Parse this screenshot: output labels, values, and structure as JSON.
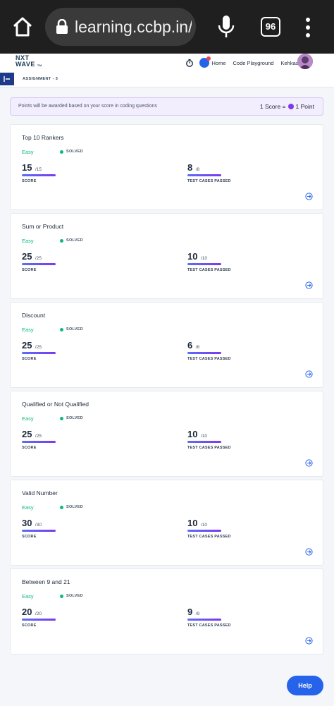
{
  "browser": {
    "url": "learning.ccbp.in/t",
    "tab_count": "96"
  },
  "header": {
    "logo_line1": "NXT",
    "logo_line2": "WAVE",
    "logo_tm": "TM",
    "nav": [
      "Home",
      "Code Playground",
      "Kehkashan"
    ]
  },
  "breadcrumb": "ASSIGNMENT - 3",
  "banner": {
    "message": "Points will be awarded based on your score in coding questions",
    "rate_left": "1 Score =",
    "rate_right": "1 Point"
  },
  "labels": {
    "score": "SCORE",
    "tests": "TEST CASES PASSED"
  },
  "questions": [
    {
      "title": "Top 10 Rankers",
      "difficulty": "Easy",
      "status": "SOLVED",
      "score": "15",
      "score_total": "/15",
      "tests": "8",
      "tests_total": "/8",
      "score_fraction": 1.0,
      "tests_fraction": 1.0
    },
    {
      "title": "Sum or Product",
      "difficulty": "Easy",
      "status": "SOLVED",
      "score": "25",
      "score_total": "/25",
      "tests": "10",
      "tests_total": "/10",
      "score_fraction": 1.0,
      "tests_fraction": 1.0
    },
    {
      "title": "Discount",
      "difficulty": "Easy",
      "status": "SOLVED",
      "score": "25",
      "score_total": "/25",
      "tests": "6",
      "tests_total": "/6",
      "score_fraction": 1.0,
      "tests_fraction": 1.0
    },
    {
      "title": "Qualified or Not Qualified",
      "difficulty": "Easy",
      "status": "SOLVED",
      "score": "25",
      "score_total": "/25",
      "tests": "10",
      "tests_total": "/10",
      "score_fraction": 1.0,
      "tests_fraction": 1.0
    },
    {
      "title": "Valid Number",
      "difficulty": "Easy",
      "status": "SOLVED",
      "score": "30",
      "score_total": "/30",
      "tests": "10",
      "tests_total": "/10",
      "score_fraction": 1.0,
      "tests_fraction": 1.0
    },
    {
      "title": "Between 9 and 21",
      "difficulty": "Easy",
      "status": "SOLVED",
      "score": "20",
      "score_total": "/20",
      "tests": "9",
      "tests_total": "/9",
      "score_fraction": 1.0,
      "tests_fraction": 1.0
    }
  ],
  "help_label": "Help",
  "colors": {
    "accent": "#2563eb",
    "progress": "#7c3aed",
    "easy": "#10b981"
  }
}
